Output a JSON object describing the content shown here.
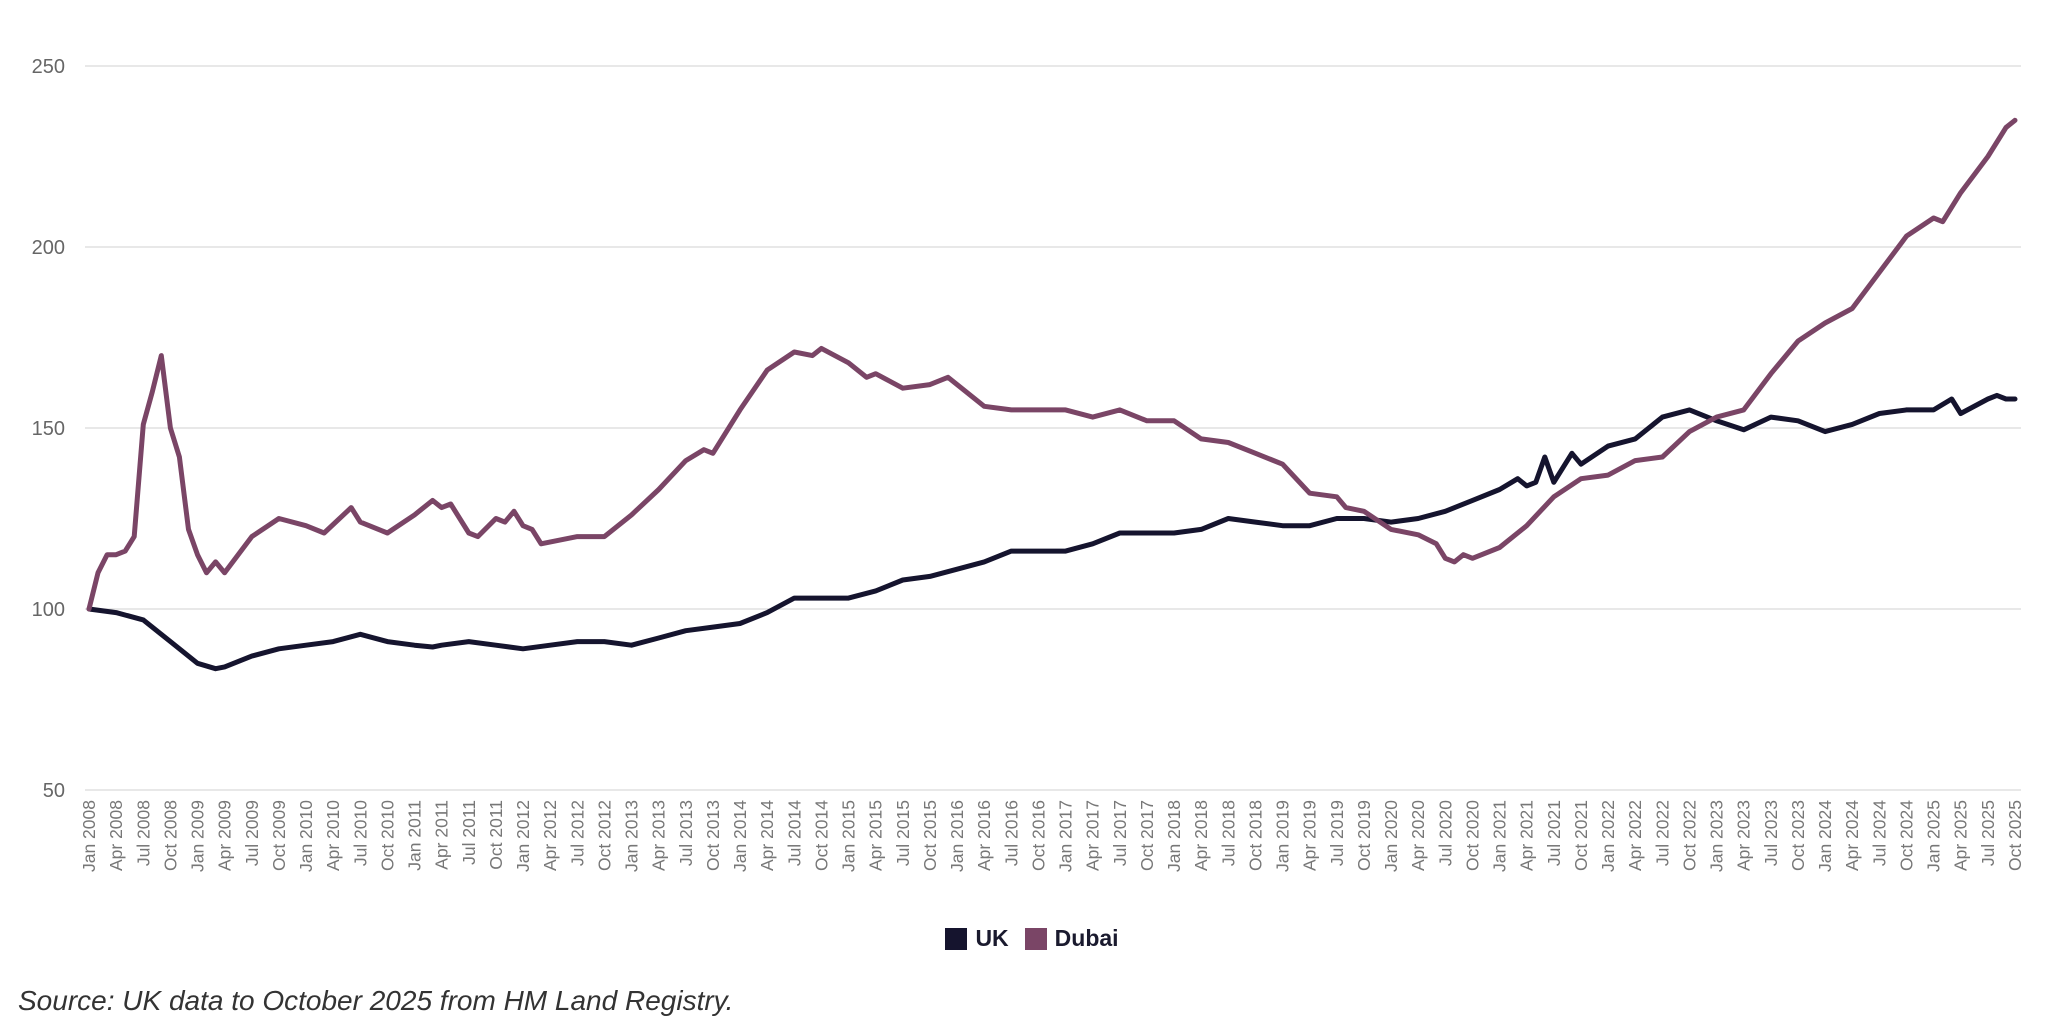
{
  "chart_data": {
    "type": "line",
    "title": "",
    "xlabel": "",
    "ylabel": "",
    "ylim": [
      50,
      250
    ],
    "yticks": [
      50,
      100,
      150,
      200,
      250
    ],
    "grid": "horizontal",
    "legend_placement": "bottom",
    "xlim": [
      "2008-01",
      "2025-10"
    ],
    "xtick_labels": [
      "Jan 2008",
      "Apr 2008",
      "Jul 2008",
      "Oct 2008",
      "Jan 2009",
      "Apr 2009",
      "Jul 2009",
      "Oct 2009",
      "Jan 2010",
      "Apr 2010",
      "Jul 2010",
      "Oct 2010",
      "Jan 2011",
      "Apr 2011",
      "Jul 2011",
      "Oct 2011",
      "Jan 2012",
      "Apr 2012",
      "Jul 2012",
      "Oct 2012",
      "Jan 2013",
      "Apr 2013",
      "Jul 2013",
      "Oct 2013",
      "Jan 2014",
      "Apr 2014",
      "Jul 2014",
      "Oct 2014",
      "Jan 2015",
      "Apr 2015",
      "Jul 2015",
      "Oct 2015",
      "Jan 2016",
      "Apr 2016",
      "Jul 2016",
      "Oct 2016",
      "Jan 2017",
      "Apr 2017",
      "Jul 2017",
      "Oct 2017",
      "Jan 2018",
      "Apr 2018",
      "Jul 2018",
      "Oct 2018",
      "Jan 2019",
      "Apr 2019",
      "Jul 2019",
      "Oct 2019",
      "Jan 2020",
      "Apr 2020",
      "Jul 2020",
      "Oct 2020",
      "Jan 2021",
      "Apr 2021",
      "Jul 2021",
      "Oct 2021",
      "Jan 2022",
      "Apr 2022",
      "Jul 2022",
      "Oct 2022",
      "Jan 2023",
      "Apr 2023",
      "Jul 2023",
      "Oct 2023",
      "Jan 2024",
      "Apr 2024",
      "Jul 2024",
      "Oct 2024",
      "Jan 2025",
      "Apr 2025",
      "Jul 2025",
      "Oct 2025"
    ],
    "series": [
      {
        "name": "UK",
        "color": "#15142e",
        "points": [
          [
            "2008-01",
            100
          ],
          [
            "2008-04",
            99
          ],
          [
            "2008-07",
            97
          ],
          [
            "2008-10",
            91
          ],
          [
            "2009-01",
            85
          ],
          [
            "2009-03",
            83.5
          ],
          [
            "2009-04",
            84
          ],
          [
            "2009-07",
            87
          ],
          [
            "2009-10",
            89
          ],
          [
            "2010-01",
            90
          ],
          [
            "2010-04",
            91
          ],
          [
            "2010-07",
            93
          ],
          [
            "2010-10",
            91
          ],
          [
            "2011-01",
            90
          ],
          [
            "2011-03",
            89.5
          ],
          [
            "2011-04",
            90
          ],
          [
            "2011-07",
            91
          ],
          [
            "2011-10",
            90
          ],
          [
            "2012-01",
            89
          ],
          [
            "2012-04",
            90
          ],
          [
            "2012-07",
            91
          ],
          [
            "2012-10",
            91
          ],
          [
            "2013-01",
            90
          ],
          [
            "2013-04",
            92
          ],
          [
            "2013-07",
            94
          ],
          [
            "2013-10",
            95
          ],
          [
            "2014-01",
            96
          ],
          [
            "2014-04",
            99
          ],
          [
            "2014-07",
            103
          ],
          [
            "2014-10",
            103
          ],
          [
            "2015-01",
            103
          ],
          [
            "2015-04",
            105
          ],
          [
            "2015-07",
            108
          ],
          [
            "2015-10",
            109
          ],
          [
            "2016-01",
            111
          ],
          [
            "2016-04",
            113
          ],
          [
            "2016-07",
            116
          ],
          [
            "2016-10",
            116
          ],
          [
            "2017-01",
            116
          ],
          [
            "2017-04",
            118
          ],
          [
            "2017-07",
            121
          ],
          [
            "2017-10",
            121
          ],
          [
            "2018-01",
            121
          ],
          [
            "2018-04",
            122
          ],
          [
            "2018-07",
            125
          ],
          [
            "2018-10",
            124
          ],
          [
            "2019-01",
            123
          ],
          [
            "2019-04",
            123
          ],
          [
            "2019-07",
            125
          ],
          [
            "2019-10",
            125
          ],
          [
            "2020-01",
            124
          ],
          [
            "2020-04",
            125
          ],
          [
            "2020-07",
            127
          ],
          [
            "2020-10",
            130
          ],
          [
            "2021-01",
            133
          ],
          [
            "2021-03",
            136
          ],
          [
            "2021-04",
            134
          ],
          [
            "2021-05",
            135
          ],
          [
            "2021-06",
            142
          ],
          [
            "2021-07",
            135
          ],
          [
            "2021-09",
            143
          ],
          [
            "2021-10",
            140
          ],
          [
            "2022-01",
            145
          ],
          [
            "2022-04",
            147
          ],
          [
            "2022-07",
            153
          ],
          [
            "2022-10",
            155
          ],
          [
            "2023-01",
            152
          ],
          [
            "2023-04",
            149.5
          ],
          [
            "2023-07",
            153
          ],
          [
            "2023-10",
            152
          ],
          [
            "2024-01",
            149
          ],
          [
            "2024-04",
            151
          ],
          [
            "2024-07",
            154
          ],
          [
            "2024-10",
            155
          ],
          [
            "2025-01",
            155
          ],
          [
            "2025-03",
            158
          ],
          [
            "2025-04",
            154
          ],
          [
            "2025-07",
            158
          ],
          [
            "2025-08",
            159
          ],
          [
            "2025-09",
            158
          ],
          [
            "2025-10",
            158
          ]
        ]
      },
      {
        "name": "Dubai",
        "color": "#7a4566",
        "points": [
          [
            "2008-01",
            100
          ],
          [
            "2008-02",
            110
          ],
          [
            "2008-03",
            115
          ],
          [
            "2008-04",
            115
          ],
          [
            "2008-05",
            116
          ],
          [
            "2008-06",
            120
          ],
          [
            "2008-07",
            151
          ],
          [
            "2008-08",
            160
          ],
          [
            "2008-09",
            170
          ],
          [
            "2008-10",
            150
          ],
          [
            "2008-11",
            142
          ],
          [
            "2008-12",
            122
          ],
          [
            "2009-01",
            115
          ],
          [
            "2009-02",
            110
          ],
          [
            "2009-03",
            113
          ],
          [
            "2009-04",
            110
          ],
          [
            "2009-07",
            120
          ],
          [
            "2009-10",
            125
          ],
          [
            "2010-01",
            123
          ],
          [
            "2010-03",
            121
          ],
          [
            "2010-06",
            128
          ],
          [
            "2010-07",
            124
          ],
          [
            "2010-10",
            121
          ],
          [
            "2011-01",
            126
          ],
          [
            "2011-03",
            130
          ],
          [
            "2011-04",
            128
          ],
          [
            "2011-05",
            129
          ],
          [
            "2011-07",
            121
          ],
          [
            "2011-08",
            120
          ],
          [
            "2011-10",
            125
          ],
          [
            "2011-11",
            124
          ],
          [
            "2011-12",
            127
          ],
          [
            "2012-01",
            123
          ],
          [
            "2012-02",
            122
          ],
          [
            "2012-03",
            118
          ],
          [
            "2012-07",
            120
          ],
          [
            "2012-10",
            120
          ],
          [
            "2013-01",
            126
          ],
          [
            "2013-04",
            133
          ],
          [
            "2013-07",
            141
          ],
          [
            "2013-09",
            144
          ],
          [
            "2013-10",
            143
          ],
          [
            "2014-01",
            155
          ],
          [
            "2014-04",
            166
          ],
          [
            "2014-07",
            171
          ],
          [
            "2014-09",
            170
          ],
          [
            "2014-10",
            172
          ],
          [
            "2015-01",
            168
          ],
          [
            "2015-03",
            164
          ],
          [
            "2015-04",
            165
          ],
          [
            "2015-07",
            161
          ],
          [
            "2015-10",
            162
          ],
          [
            "2015-12",
            164
          ],
          [
            "2016-04",
            156
          ],
          [
            "2016-07",
            155
          ],
          [
            "2016-10",
            155
          ],
          [
            "2017-01",
            155
          ],
          [
            "2017-04",
            153
          ],
          [
            "2017-07",
            155
          ],
          [
            "2017-10",
            152
          ],
          [
            "2018-01",
            152
          ],
          [
            "2018-04",
            147
          ],
          [
            "2018-07",
            146
          ],
          [
            "2018-10",
            143
          ],
          [
            "2019-01",
            140
          ],
          [
            "2019-04",
            132
          ],
          [
            "2019-07",
            131
          ],
          [
            "2019-08",
            128
          ],
          [
            "2019-10",
            127
          ],
          [
            "2020-01",
            122
          ],
          [
            "2020-04",
            120.5
          ],
          [
            "2020-06",
            118
          ],
          [
            "2020-07",
            114
          ],
          [
            "2020-08",
            113
          ],
          [
            "2020-09",
            115
          ],
          [
            "2020-10",
            114
          ],
          [
            "2021-01",
            117
          ],
          [
            "2021-04",
            123
          ],
          [
            "2021-07",
            131
          ],
          [
            "2021-10",
            136
          ],
          [
            "2022-01",
            137
          ],
          [
            "2022-04",
            141
          ],
          [
            "2022-07",
            142
          ],
          [
            "2022-10",
            149
          ],
          [
            "2023-01",
            153
          ],
          [
            "2023-04",
            155
          ],
          [
            "2023-07",
            165
          ],
          [
            "2023-10",
            174
          ],
          [
            "2024-01",
            179
          ],
          [
            "2024-04",
            183
          ],
          [
            "2024-07",
            193
          ],
          [
            "2024-10",
            203
          ],
          [
            "2025-01",
            208
          ],
          [
            "2025-02",
            207
          ],
          [
            "2025-04",
            215
          ],
          [
            "2025-07",
            225
          ],
          [
            "2025-09",
            233
          ],
          [
            "2025-10",
            235
          ]
        ]
      }
    ]
  },
  "legend": {
    "items": [
      {
        "label": "UK",
        "color": "#15142e"
      },
      {
        "label": "Dubai",
        "color": "#7a4566"
      }
    ]
  },
  "source": "Source: UK data to October 2025 from HM Land Registry."
}
